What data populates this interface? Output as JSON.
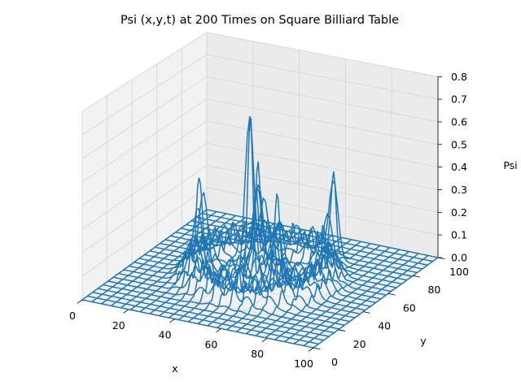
{
  "chart_data": {
    "type": "surface-wireframe-3d",
    "title": "Psi (x,y,t) at 200 Times on Square Billiard Table",
    "xlabel": "x",
    "ylabel": "y",
    "zlabel": "Psi",
    "xlim": [
      0,
      100
    ],
    "ylim": [
      0,
      100
    ],
    "zlim": [
      0,
      0.8
    ],
    "x_ticks": [
      "0",
      "20",
      "40",
      "60",
      "80",
      "100"
    ],
    "y_ticks": [
      "0",
      "20",
      "40",
      "60",
      "80",
      "100"
    ],
    "z_ticks": [
      "0.0",
      "0.1",
      "0.2",
      "0.3",
      "0.4",
      "0.5",
      "0.6",
      "0.7",
      "0.8"
    ],
    "series": [
      {
        "color": "#1f77b4",
        "grid_size": 24,
        "background_level": 0.0,
        "features": [
          {
            "kind": "ring",
            "center": [
              50,
              50
            ],
            "radius": 26,
            "width": 5,
            "amplitude": 0.14
          },
          {
            "kind": "peak",
            "x": 50,
            "y": 42,
            "height": 0.72
          },
          {
            "kind": "peak",
            "x": 47,
            "y": 56,
            "height": 0.56
          },
          {
            "kind": "peak",
            "x": 30,
            "y": 40,
            "height": 0.42
          },
          {
            "kind": "peak",
            "x": 66,
            "y": 78,
            "height": 0.4
          },
          {
            "kind": "peak",
            "x": 58,
            "y": 48,
            "height": 0.38
          },
          {
            "kind": "peak",
            "x": 42,
            "y": 62,
            "height": 0.3
          },
          {
            "kind": "peak",
            "x": 64,
            "y": 38,
            "height": 0.28
          }
        ]
      }
    ],
    "grid": true,
    "panes": true
  }
}
